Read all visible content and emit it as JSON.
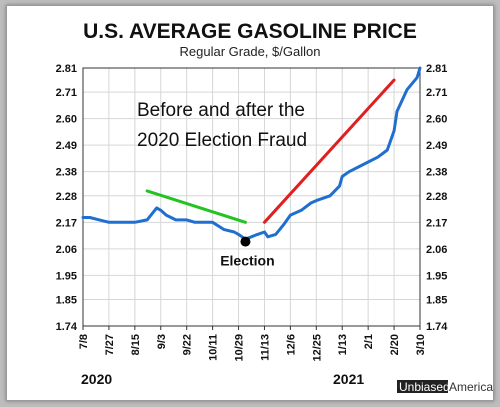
{
  "chart_data": {
    "type": "line",
    "title": "U.S. AVERAGE GASOLINE PRICE",
    "subtitle": "Regular Grade, $/Gallon",
    "y_ticks": [
      "2.81",
      "2.71",
      "2.60",
      "2.49",
      "2.38",
      "2.28",
      "2.17",
      "2.06",
      "1.95",
      "1.85",
      "1.74"
    ],
    "ylim": [
      1.74,
      2.81
    ],
    "x_ticks": [
      "7/8",
      "7/27",
      "8/15",
      "9/3",
      "9/22",
      "10/11",
      "10/29",
      "11/13",
      "12/6",
      "12/25",
      "1/13",
      "2/1",
      "2/20",
      "3/10"
    ],
    "year_labels": [
      "2020",
      "2021"
    ],
    "grid": true,
    "series": [
      {
        "color": "#1f6fd1",
        "x": [
          "7/8",
          "7/13",
          "7/20",
          "7/27",
          "8/3",
          "8/10",
          "8/15",
          "8/24",
          "8/31",
          "9/3",
          "9/7",
          "9/14",
          "9/22",
          "9/28",
          "10/5",
          "10/11",
          "10/19",
          "10/26",
          "10/29",
          "11/2",
          "11/9",
          "11/13",
          "11/16",
          "11/23",
          "11/30",
          "12/6",
          "12/14",
          "12/21",
          "12/25",
          "1/4",
          "1/11",
          "1/13",
          "1/18",
          "1/25",
          "2/1",
          "2/8",
          "2/15",
          "2/20",
          "2/22",
          "3/1",
          "3/8",
          "3/10"
        ],
        "values": [
          2.19,
          2.19,
          2.18,
          2.17,
          2.17,
          2.17,
          2.17,
          2.18,
          2.23,
          2.22,
          2.2,
          2.18,
          2.18,
          2.17,
          2.17,
          2.17,
          2.14,
          2.13,
          2.12,
          2.1,
          2.12,
          2.13,
          2.11,
          2.12,
          2.16,
          2.2,
          2.22,
          2.25,
          2.26,
          2.28,
          2.32,
          2.36,
          2.38,
          2.4,
          2.42,
          2.44,
          2.47,
          2.55,
          2.63,
          2.72,
          2.77,
          2.81
        ]
      }
    ],
    "trend_lines": [
      {
        "color": "#22c322",
        "from": {
          "x": "8/24",
          "y": 2.3
        },
        "to": {
          "x": "11/2",
          "y": 2.17
        }
      },
      {
        "color": "#e02020",
        "from": {
          "x": "11/13",
          "y": 2.17
        },
        "to": {
          "x": "2/20",
          "y": 2.76
        }
      }
    ],
    "annotation_lines": [
      "Before and after the",
      "2020 Election Fraud"
    ],
    "marker": {
      "label": "Election",
      "x": "11/2",
      "y": 2.09,
      "color": "#000000"
    }
  },
  "brand": {
    "word1": "Unbiased",
    "word2": "America"
  }
}
